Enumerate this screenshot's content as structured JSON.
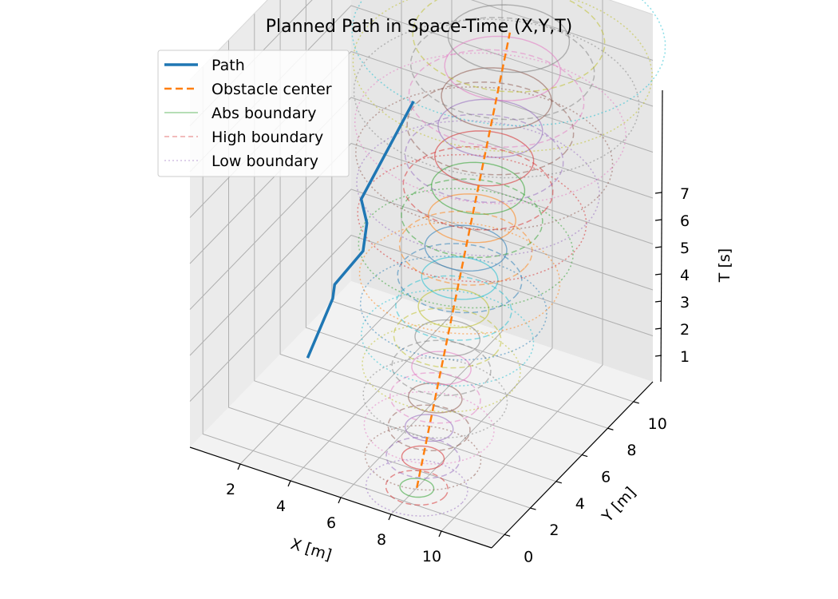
{
  "chart_data": {
    "type": "line3d",
    "title": "Planned Path in Space-Time (X,Y,T)",
    "xlabel": "X [m]",
    "ylabel": "Y [m]",
    "zlabel": "T [s]",
    "xlim": [
      0,
      12
    ],
    "ylim": [
      -1,
      11.5
    ],
    "zlim": [
      0,
      8
    ],
    "xticks": [
      2,
      4,
      6,
      8,
      10
    ],
    "yticks": [
      0,
      2,
      4,
      6,
      8,
      10
    ],
    "zticks": [
      1,
      2,
      3,
      4,
      5,
      6,
      7
    ],
    "grid": true,
    "legend_position": "top-left",
    "legend": [
      {
        "label": "Path",
        "style": "solid-thick",
        "color": "#1f77b4"
      },
      {
        "label": "Obstacle center",
        "style": "dashed",
        "color": "#ff7f0e"
      },
      {
        "label": "Abs boundary",
        "style": "solid-thin",
        "color": "#2ca02c"
      },
      {
        "label": "High boundary",
        "style": "dashed-thin",
        "color": "#d62728"
      },
      {
        "label": "Low boundary",
        "style": "dotted",
        "color": "#9467bd"
      }
    ],
    "path": {
      "name": "Path",
      "color": "#1f77b4",
      "points": [
        {
          "x": 1.6,
          "y": 5.0,
          "t": 0.5
        },
        {
          "x": 2.5,
          "y": 5.2,
          "t": 1.9
        },
        {
          "x": 2.55,
          "y": 5.25,
          "t": 2.2
        },
        {
          "x": 3.5,
          "y": 5.6,
          "t": 3.0
        },
        {
          "x": 3.6,
          "y": 5.7,
          "t": 3.6
        },
        {
          "x": 3.4,
          "y": 5.65,
          "t": 4.1
        },
        {
          "x": 5.2,
          "y": 6.2,
          "t": 6.4
        }
      ]
    },
    "obstacle_center": {
      "name": "Obstacle center",
      "color": "#ff7f0e",
      "points": [
        {
          "x": 8.0,
          "y": 1.0,
          "t": 0.0
        },
        {
          "x": 7.7,
          "y": 8.8,
          "t": 7.6
        }
      ]
    },
    "boundaries": {
      "times": [
        0.0,
        0.5,
        1.0,
        1.5,
        2.0,
        2.5,
        3.0,
        3.5,
        4.0,
        4.5,
        5.0,
        5.5,
        6.0,
        6.5,
        7.0,
        7.5
      ],
      "abs_radius": [
        0.6,
        0.75,
        0.85,
        0.95,
        1.05,
        1.15,
        1.25,
        1.35,
        1.45,
        1.55,
        1.65,
        1.75,
        1.85,
        1.95,
        2.05,
        2.15
      ],
      "high_radius": [
        1.1,
        1.3,
        1.45,
        1.6,
        1.75,
        1.9,
        2.05,
        2.2,
        2.35,
        2.5,
        2.65,
        2.8,
        2.95,
        3.1,
        3.25,
        3.4
      ],
      "low_radius": [
        1.8,
        2.05,
        2.3,
        2.55,
        2.8,
        3.05,
        3.3,
        3.55,
        3.8,
        4.05,
        4.3,
        4.55,
        4.8,
        5.05,
        5.3,
        5.55
      ],
      "palette": [
        "#1f77b4",
        "#ff7f0e",
        "#2ca02c",
        "#d62728",
        "#9467bd",
        "#8c564b",
        "#e377c2",
        "#7f7f7f",
        "#bcbd22",
        "#17becf"
      ]
    }
  }
}
